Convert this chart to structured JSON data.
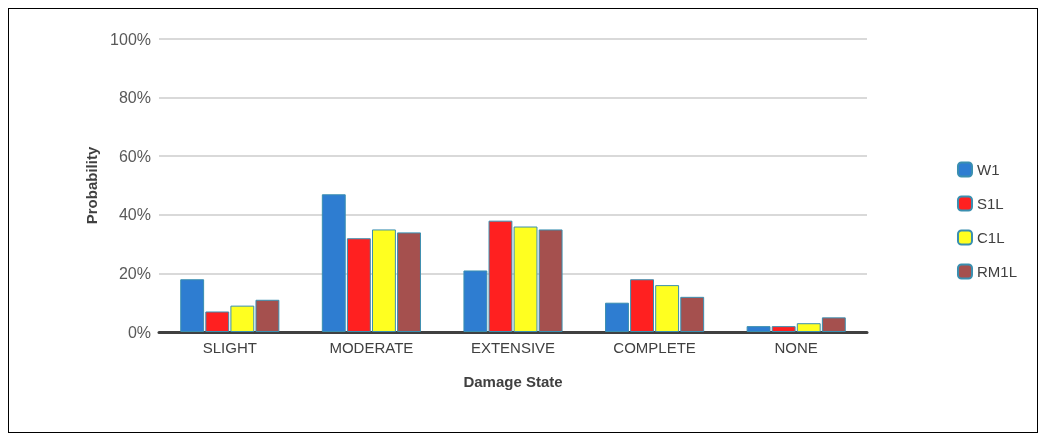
{
  "chart_data": {
    "type": "bar",
    "xlabel": "Damage State",
    "ylabel": "Probability",
    "categories": [
      "SLIGHT",
      "MODERATE",
      "EXTENSIVE",
      "COMPLETE",
      "NONE"
    ],
    "series": [
      {
        "name": "W1",
        "color": "#2e7dd1",
        "values": [
          18,
          47,
          21,
          10,
          2
        ]
      },
      {
        "name": "S1L",
        "color": "#ff2020",
        "values": [
          7,
          32,
          38,
          18,
          2
        ]
      },
      {
        "name": "C1L",
        "color": "#ffff20",
        "values": [
          9,
          35,
          36,
          16,
          3
        ]
      },
      {
        "name": "RM1L",
        "color": "#a5504e",
        "values": [
          11,
          34,
          35,
          12,
          5
        ]
      }
    ],
    "ylim": [
      0,
      100
    ],
    "yticks": [
      {
        "value": 0,
        "label": "0%"
      },
      {
        "value": 20,
        "label": "20%"
      },
      {
        "value": 40,
        "label": "40%"
      },
      {
        "value": 60,
        "label": "60%"
      },
      {
        "value": 80,
        "label": "80%"
      },
      {
        "value": 100,
        "label": "100%"
      }
    ],
    "grid": "y",
    "legend": "right"
  }
}
